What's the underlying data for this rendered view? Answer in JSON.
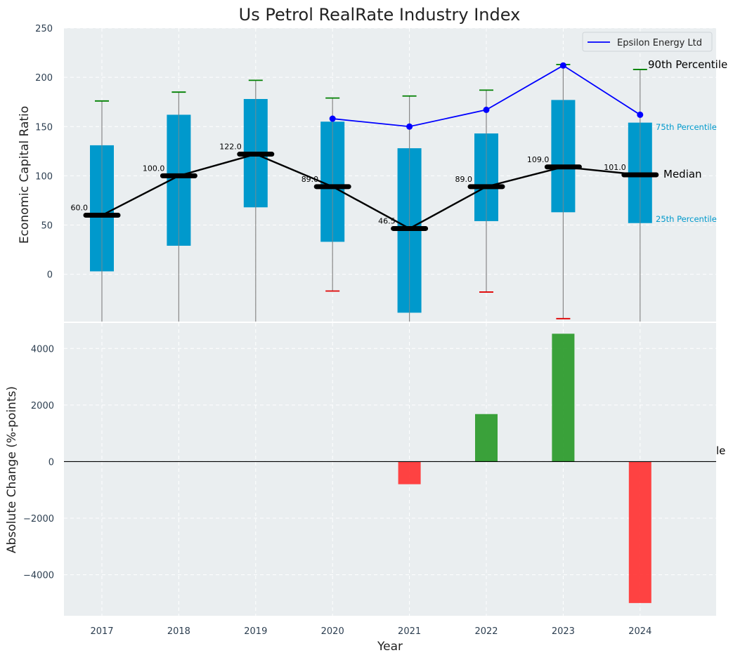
{
  "colors": {
    "box": "#0099cc",
    "panel_bg": "#eaeef0",
    "line_company": "#0000ff",
    "median_line": "#000000",
    "whisker": "#888888",
    "cap_high": "#008000",
    "cap_low": "#e00000",
    "bar_pos": "#2a9a2a",
    "bar_neg": "#ff3333",
    "pct_label": "#0099cc"
  },
  "chart_data": [
    {
      "type": "box",
      "title": "Us Petrol RealRate Industry Index",
      "xlabel": "Year",
      "ylabel": "Economic Capital Ratio",
      "ylim": [
        -48,
        250
      ],
      "yticks": [
        0,
        50,
        100,
        150,
        200,
        250
      ],
      "categories": [
        "2017",
        "2018",
        "2019",
        "2020",
        "2021",
        "2022",
        "2023",
        "2024"
      ],
      "p10": [
        null,
        null,
        null,
        -17,
        null,
        -18,
        -45,
        null
      ],
      "p25": [
        3,
        29,
        68,
        33,
        -39,
        54,
        63,
        52
      ],
      "median": [
        60,
        100,
        122,
        89,
        46.5,
        89,
        109,
        101
      ],
      "median_labels": [
        "60.0",
        "100.0",
        "122.0",
        "89.0",
        "46.5",
        "89.0",
        "109.0",
        "101.0"
      ],
      "p75": [
        131,
        162,
        178,
        155,
        128,
        143,
        177,
        154
      ],
      "p90": [
        176,
        185,
        197,
        179,
        181,
        187,
        213,
        208
      ],
      "company_series": {
        "name": "Epsilon Energy Ltd",
        "x": [
          "2020",
          "2021",
          "2022",
          "2023",
          "2024"
        ],
        "values": [
          158,
          150,
          167,
          212,
          162
        ]
      },
      "legend": [
        "Epsilon Energy Ltd"
      ],
      "legend_position": "top-right",
      "annotations": {
        "p90": "90th Percentile",
        "p75": "75th Percentile",
        "median": "Median",
        "p25": "25th Percentile"
      }
    },
    {
      "type": "bar",
      "xlabel": "Year",
      "ylabel": "Absolute Change (%-points)",
      "ylim": [
        -5450,
        4900
      ],
      "yticks": [
        -4000,
        -2000,
        0,
        2000,
        4000
      ],
      "ytick_labels": [
        "−4000",
        "−2000",
        "0",
        "2000",
        "4000"
      ],
      "categories": [
        "2017",
        "2018",
        "2019",
        "2020",
        "2021",
        "2022",
        "2023",
        "2024"
      ],
      "values": [
        0,
        0,
        0,
        0,
        -800,
        1680,
        4520,
        -5000
      ],
      "clipped_label": "le"
    }
  ]
}
